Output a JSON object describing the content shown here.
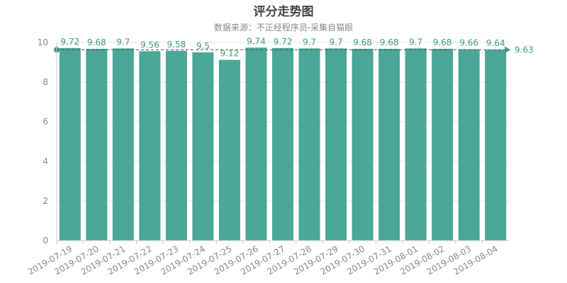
{
  "chart_data": {
    "type": "bar",
    "title": "评分走势图",
    "subtitle": "数据来源：不正经程序员-采集自猫眼",
    "categories": [
      "2019-07-19",
      "2019-07-20",
      "2019-07-21",
      "2019-07-22",
      "2019-07-23",
      "2019-07-24",
      "2019-07-25",
      "2019-07-26",
      "2019-07-27",
      "2019-07-28",
      "2019-07-29",
      "2019-07-30",
      "2019-07-31",
      "2019-08-01",
      "2019-08-02",
      "2019-08-03",
      "2019-08-04"
    ],
    "values": [
      9.72,
      9.68,
      9.7,
      9.56,
      9.58,
      9.5,
      9.12,
      9.74,
      9.72,
      9.7,
      9.7,
      9.68,
      9.68,
      9.7,
      9.68,
      9.66,
      9.64
    ],
    "value_labels": [
      "9.72",
      "9.68",
      "9.7",
      "9.56",
      "9.58",
      "9.5",
      "9.12",
      "9.74",
      "9.72",
      "9.7",
      "9.7",
      "9.68",
      "9.68",
      "9.7",
      "9.68",
      "9.66",
      "9.64"
    ],
    "average": 9.63,
    "average_label": "9.63",
    "ylim": [
      0,
      10
    ],
    "yticks": [
      "0",
      "2",
      "4",
      "6",
      "8",
      "10"
    ],
    "grid": true,
    "bar_color": "#4aa795",
    "label_color": "#3e9a85"
  }
}
